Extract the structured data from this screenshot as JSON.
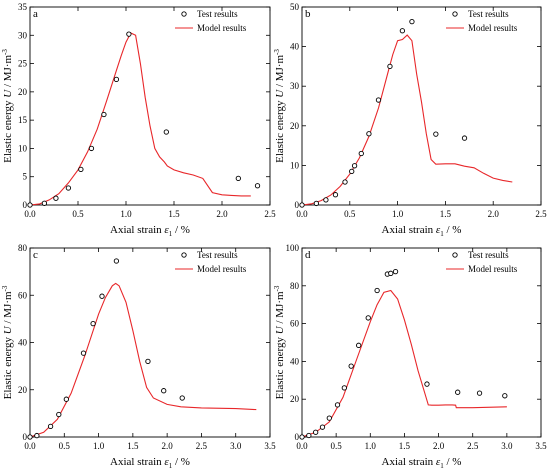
{
  "figure": {
    "colors": {
      "test": "#000000",
      "model": "#e8272a",
      "axis": "#000000"
    }
  },
  "chart_data": [
    {
      "panel_label": "a",
      "type": "line",
      "xlabel": "Axial strain",
      "xlabel_symbol": "ε",
      "xlabel_sub": "1",
      "xlabel_unit": " / %",
      "ylabel": "Elastic energy",
      "ylabel_symbol": "U",
      "ylabel_unit": " / MJ·m",
      "ylabel_sup": "-3",
      "xlim": [
        0,
        2.5
      ],
      "ylim": [
        0,
        35
      ],
      "xticks": [
        "0.0",
        "0.5",
        "1.0",
        "1.5",
        "2.0",
        "2.5"
      ],
      "yticks": [
        "0",
        "5",
        "10",
        "15",
        "20",
        "25",
        "30",
        "35"
      ],
      "legend": {
        "position": "top-right",
        "entries": [
          "Test results",
          "Model results"
        ]
      },
      "series": [
        {
          "name": "Test results",
          "marker": "open-circle",
          "x": [
            0.0,
            0.15,
            0.27,
            0.4,
            0.53,
            0.64,
            0.77,
            0.9,
            1.03,
            1.42,
            2.17,
            2.37
          ],
          "y": [
            0.0,
            0.3,
            1.2,
            3.0,
            6.3,
            10.0,
            16.0,
            22.2,
            30.2,
            12.9,
            4.7,
            3.4
          ]
        },
        {
          "name": "Model results",
          "marker": "line",
          "x": [
            0.0,
            0.1,
            0.2,
            0.3,
            0.4,
            0.5,
            0.6,
            0.7,
            0.8,
            0.9,
            0.95,
            1.0,
            1.05,
            1.1,
            1.15,
            1.2,
            1.25,
            1.3,
            1.35,
            1.4,
            1.43,
            1.5,
            1.6,
            1.7,
            1.8,
            1.9,
            2.0,
            2.1,
            2.2,
            2.3
          ],
          "y": [
            0.0,
            0.2,
            0.9,
            2.0,
            3.9,
            6.2,
            9.4,
            13.4,
            18.5,
            23.8,
            26.4,
            28.8,
            30.4,
            30.0,
            25.0,
            19.0,
            14.0,
            10.0,
            8.5,
            7.6,
            6.9,
            6.2,
            5.7,
            5.3,
            4.7,
            2.2,
            1.8,
            1.7,
            1.6,
            1.6
          ]
        }
      ]
    },
    {
      "panel_label": "b",
      "type": "line",
      "xlabel": "Axial strain",
      "xlabel_symbol": "ε",
      "xlabel_sub": "1",
      "xlabel_unit": " / %",
      "ylabel": "Elastic energy",
      "ylabel_symbol": "U",
      "ylabel_unit": " / MJ·m",
      "ylabel_sup": "-3",
      "xlim": [
        0,
        2.5
      ],
      "ylim": [
        0,
        50
      ],
      "xticks": [
        "0.0",
        "0.5",
        "1.0",
        "1.5",
        "2.0",
        "2.5"
      ],
      "yticks": [
        "0",
        "10",
        "20",
        "30",
        "40",
        "50"
      ],
      "legend": {
        "position": "top-right",
        "entries": [
          "Test results",
          "Model results"
        ]
      },
      "series": [
        {
          "name": "Test results",
          "marker": "open-circle",
          "x": [
            0.0,
            0.15,
            0.25,
            0.35,
            0.45,
            0.52,
            0.55,
            0.62,
            0.7,
            0.8,
            0.92,
            1.05,
            1.15,
            1.4,
            1.7
          ],
          "y": [
            0.0,
            0.4,
            1.3,
            2.6,
            5.8,
            8.5,
            9.9,
            13.0,
            18.0,
            26.5,
            35.0,
            44.0,
            46.3,
            17.9,
            16.9
          ]
        },
        {
          "name": "Model results",
          "marker": "line",
          "x": [
            0.0,
            0.1,
            0.2,
            0.3,
            0.4,
            0.5,
            0.6,
            0.7,
            0.8,
            0.9,
            0.95,
            1.0,
            1.05,
            1.1,
            1.15,
            1.2,
            1.25,
            1.3,
            1.35,
            1.4,
            1.5,
            1.6,
            1.7,
            1.8,
            1.9,
            2.0,
            2.1,
            2.2
          ],
          "y": [
            0.0,
            0.3,
            1.1,
            2.5,
            4.7,
            7.8,
            11.9,
            17.3,
            24.5,
            33.5,
            38.0,
            41.5,
            41.8,
            42.9,
            41.5,
            33.0,
            26.0,
            18.0,
            11.5,
            10.3,
            10.4,
            10.4,
            9.8,
            9.4,
            8.0,
            6.8,
            6.2,
            5.8
          ]
        }
      ]
    },
    {
      "panel_label": "c",
      "type": "line",
      "xlabel": "Axial strain",
      "xlabel_symbol": "ε",
      "xlabel_sub": "1",
      "xlabel_unit": " / %",
      "ylabel": "Elastic energy",
      "ylabel_symbol": "U",
      "ylabel_unit": " / MJ·m",
      "ylabel_sup": "-3",
      "xlim": [
        0,
        3.5
      ],
      "ylim": [
        0,
        80
      ],
      "xticks": [
        "0.0",
        "0.5",
        "1.0",
        "1.5",
        "2.0",
        "2.5",
        "3.0",
        "3.5"
      ],
      "yticks": [
        "0",
        "20",
        "40",
        "60",
        "80"
      ],
      "legend": {
        "position": "top-right",
        "entries": [
          "Test results",
          "Model results"
        ]
      },
      "series": [
        {
          "name": "Test results",
          "marker": "open-circle",
          "x": [
            0.0,
            0.1,
            0.3,
            0.42,
            0.53,
            0.78,
            0.92,
            1.05,
            1.26,
            1.72,
            1.95,
            2.22
          ],
          "y": [
            0.0,
            0.6,
            4.5,
            9.5,
            16.0,
            35.5,
            48.0,
            59.6,
            74.5,
            32.0,
            19.6,
            16.5
          ]
        },
        {
          "name": "Model results",
          "marker": "line",
          "x": [
            0.0,
            0.2,
            0.4,
            0.6,
            0.8,
            1.0,
            1.1,
            1.2,
            1.25,
            1.3,
            1.4,
            1.5,
            1.6,
            1.7,
            1.8,
            2.0,
            2.2,
            2.5,
            3.0,
            3.3
          ],
          "y": [
            0.0,
            2.0,
            7.5,
            18.5,
            34.5,
            52.0,
            59.0,
            64.0,
            65.0,
            64.0,
            57.0,
            45.0,
            32.0,
            21.0,
            16.5,
            13.8,
            12.8,
            12.3,
            12.0,
            11.6
          ]
        }
      ]
    },
    {
      "panel_label": "d",
      "type": "line",
      "xlabel": "Axial strain",
      "xlabel_symbol": "ε",
      "xlabel_sub": "1",
      "xlabel_unit": " / %",
      "ylabel": "Elastic energy",
      "ylabel_symbol": "U",
      "ylabel_unit": " / MJ·m",
      "ylabel_sup": "-3",
      "xlim": [
        0,
        3.5
      ],
      "ylim": [
        0,
        100
      ],
      "xticks": [
        "0.0",
        "0.5",
        "1.0",
        "1.5",
        "2.0",
        "2.5",
        "3.0",
        "3.5"
      ],
      "yticks": [
        "0",
        "20",
        "40",
        "60",
        "80",
        "100"
      ],
      "legend": {
        "position": "top-right",
        "entries": [
          "Test results",
          "Model results"
        ]
      },
      "series": [
        {
          "name": "Test results",
          "marker": "open-circle",
          "x": [
            0.0,
            0.1,
            0.2,
            0.3,
            0.4,
            0.52,
            0.62,
            0.72,
            0.83,
            0.97,
            1.1,
            1.25,
            1.3,
            1.37,
            1.83,
            2.28,
            2.6,
            2.97
          ],
          "y": [
            0.0,
            0.8,
            2.5,
            5.2,
            10.0,
            17.0,
            26.0,
            37.5,
            48.5,
            63.0,
            77.5,
            86.2,
            86.6,
            87.5,
            28.0,
            23.7,
            23.2,
            21.8
          ]
        },
        {
          "name": "Model results",
          "marker": "line",
          "x": [
            0.0,
            0.2,
            0.4,
            0.6,
            0.8,
            1.0,
            1.1,
            1.2,
            1.3,
            1.4,
            1.5,
            1.6,
            1.7,
            1.8,
            1.85,
            1.9,
            2.0,
            2.1,
            2.2,
            2.25,
            2.26,
            2.5,
            3.0
          ],
          "y": [
            0.0,
            2.5,
            8.0,
            21.0,
            41.0,
            61.0,
            70.0,
            76.5,
            77.5,
            73.0,
            62.0,
            49.0,
            35.0,
            23.0,
            17.0,
            16.8,
            16.8,
            17.0,
            17.0,
            16.8,
            15.5,
            15.5,
            16.0
          ]
        }
      ]
    }
  ]
}
